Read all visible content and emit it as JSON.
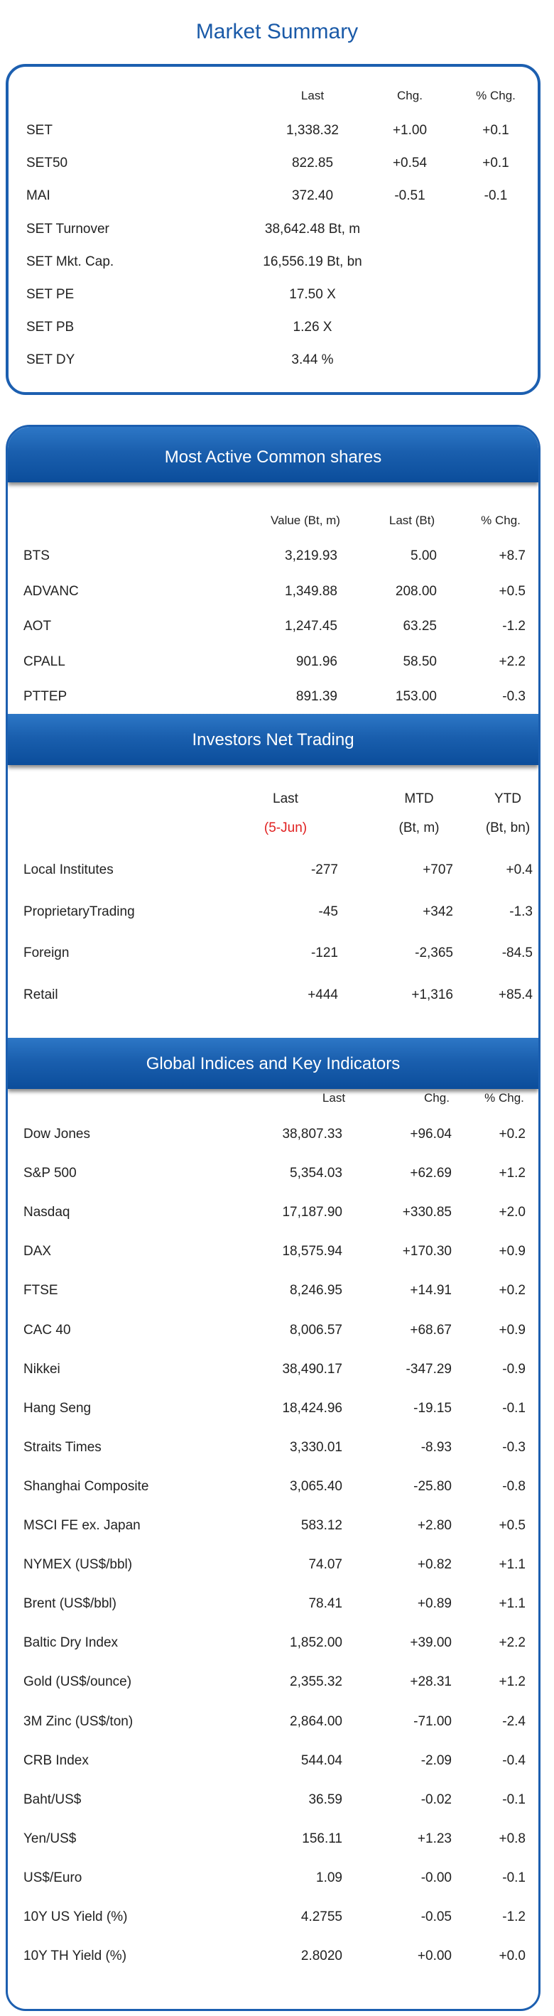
{
  "market_summary": {
    "title": "Market Summary",
    "headers": {
      "last": "Last",
      "chg": "Chg.",
      "pct": "% Chg."
    },
    "rows": [
      {
        "name": "SET",
        "last": "1,338.32",
        "chg": "+1.00",
        "pct": "+0.1"
      },
      {
        "name": "SET50",
        "last": "822.85",
        "chg": "+0.54",
        "pct": "+0.1"
      },
      {
        "name": "MAI",
        "last": "372.40",
        "chg": "-0.51",
        "pct": "-0.1"
      },
      {
        "name": "SET Turnover",
        "last": "38,642.48 Bt, m",
        "chg": "",
        "pct": ""
      },
      {
        "name": "SET Mkt. Cap.",
        "last": "16,556.19 Bt, bn",
        "chg": "",
        "pct": ""
      },
      {
        "name": "SET PE",
        "last": "17.50 X",
        "chg": "",
        "pct": ""
      },
      {
        "name": "SET PB",
        "last": "1.26 X",
        "chg": "",
        "pct": ""
      },
      {
        "name": "SET DY",
        "last": "3.44 %",
        "chg": "",
        "pct": ""
      }
    ]
  },
  "most_active": {
    "title": "Most Active Common shares",
    "headers": {
      "value": "Value (Bt, m)",
      "last": "Last (Bt)",
      "pct": "% Chg."
    },
    "rows": [
      {
        "name": "BTS",
        "value": "3,219.93",
        "last": "5.00",
        "pct": "+8.7"
      },
      {
        "name": "ADVANC",
        "value": "1,349.88",
        "last": "208.00",
        "pct": "+0.5"
      },
      {
        "name": "AOT",
        "value": "1,247.45",
        "last": "63.25",
        "pct": "-1.2"
      },
      {
        "name": "CPALL",
        "value": "901.96",
        "last": "58.50",
        "pct": "+2.2"
      },
      {
        "name": "PTTEP",
        "value": "891.39",
        "last": "153.00",
        "pct": "-0.3"
      }
    ]
  },
  "investors": {
    "title": "Investors Net Trading",
    "headers": {
      "last": "Last",
      "mtd": "MTD",
      "ytd": "YTD",
      "date": "(5-Jun)",
      "mtd_unit": "(Bt, m)",
      "ytd_unit": "(Bt, bn)"
    },
    "rows": [
      {
        "name": "Local Institutes",
        "last": "-277",
        "mtd": "+707",
        "ytd": "+0.4"
      },
      {
        "name": "ProprietaryTrading",
        "last": "-45",
        "mtd": "+342",
        "ytd": "-1.3"
      },
      {
        "name": "Foreign",
        "last": "-121",
        "mtd": "-2,365",
        "ytd": "-84.5"
      },
      {
        "name": "Retail",
        "last": "+444",
        "mtd": "+1,316",
        "ytd": "+85.4"
      }
    ]
  },
  "global": {
    "title": "Global Indices and Key Indicators",
    "headers": {
      "last": "Last",
      "chg": "Chg.",
      "pct": "% Chg."
    },
    "rows": [
      {
        "name": "Dow Jones",
        "last": "38,807.33",
        "chg": "+96.04",
        "pct": "+0.2"
      },
      {
        "name": "S&P 500",
        "last": "5,354.03",
        "chg": "+62.69",
        "pct": "+1.2"
      },
      {
        "name": "Nasdaq",
        "last": "17,187.90",
        "chg": "+330.85",
        "pct": "+2.0"
      },
      {
        "name": "DAX",
        "last": "18,575.94",
        "chg": "+170.30",
        "pct": "+0.9"
      },
      {
        "name": "FTSE",
        "last": "8,246.95",
        "chg": "+14.91",
        "pct": "+0.2"
      },
      {
        "name": "CAC 40",
        "last": "8,006.57",
        "chg": "+68.67",
        "pct": "+0.9"
      },
      {
        "name": "Nikkei",
        "last": "38,490.17",
        "chg": "-347.29",
        "pct": "-0.9"
      },
      {
        "name": "Hang Seng",
        "last": "18,424.96",
        "chg": "-19.15",
        "pct": "-0.1"
      },
      {
        "name": "Straits Times",
        "last": "3,330.01",
        "chg": "-8.93",
        "pct": "-0.3"
      },
      {
        "name": "Shanghai Composite",
        "last": "3,065.40",
        "chg": "-25.80",
        "pct": "-0.8"
      },
      {
        "name": "MSCI FE ex. Japan",
        "last": "583.12",
        "chg": "+2.80",
        "pct": "+0.5"
      },
      {
        "name": "NYMEX (US$/bbl)",
        "last": "74.07",
        "chg": "+0.82",
        "pct": "+1.1"
      },
      {
        "name": "Brent (US$/bbl)",
        "last": "78.41",
        "chg": "+0.89",
        "pct": "+1.1"
      },
      {
        "name": "Baltic Dry Index",
        "last": "1,852.00",
        "chg": "+39.00",
        "pct": "+2.2"
      },
      {
        "name": "Gold (US$/ounce)",
        "last": "2,355.32",
        "chg": "+28.31",
        "pct": "+1.2"
      },
      {
        "name": "3M Zinc (US$/ton)",
        "last": "2,864.00",
        "chg": "-71.00",
        "pct": "-2.4"
      },
      {
        "name": "CRB Index",
        "last": "544.04",
        "chg": "-2.09",
        "pct": "-0.4"
      },
      {
        "name": "Baht/US$",
        "last": "36.59",
        "chg": "-0.02",
        "pct": "-0.1"
      },
      {
        "name": "Yen/US$",
        "last": "156.11",
        "chg": "+1.23",
        "pct": "+0.8"
      },
      {
        "name": "US$/Euro",
        "last": "1.09",
        "chg": "-0.00",
        "pct": "-0.1"
      },
      {
        "name": "10Y US Yield (%)",
        "last": "4.2755",
        "chg": "-0.05",
        "pct": "-1.2"
      },
      {
        "name": "10Y TH Yield (%)",
        "last": "2.8020",
        "chg": "+0.00",
        "pct": "+0.0"
      }
    ]
  },
  "colors": {
    "accent_blue": "#1c5fb0",
    "title_blue": "#1a5aa8",
    "highlight_red": "#e02020"
  }
}
